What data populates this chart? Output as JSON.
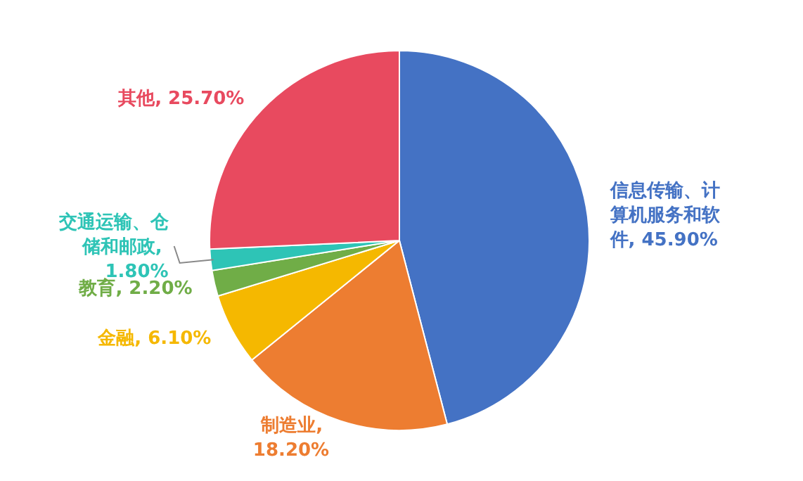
{
  "chart_data": {
    "type": "pie",
    "categories": [
      "信息传输、计算机服务和软件",
      "制造业",
      "金融",
      "教育",
      "交通运输、仓储和邮政",
      "其他"
    ],
    "values": [
      45.9,
      18.2,
      6.1,
      2.2,
      1.8,
      25.7
    ],
    "value_labels": [
      ", 45.90%",
      ", 18.20%",
      ", 6.10%",
      ", 2.20%",
      ", 1.80%",
      ", 25.70%"
    ],
    "colors": [
      "#4472c4",
      "#ed7d31",
      "#f5b800",
      "#70ad47",
      "#2ec4b6",
      "#e84a5f"
    ]
  }
}
